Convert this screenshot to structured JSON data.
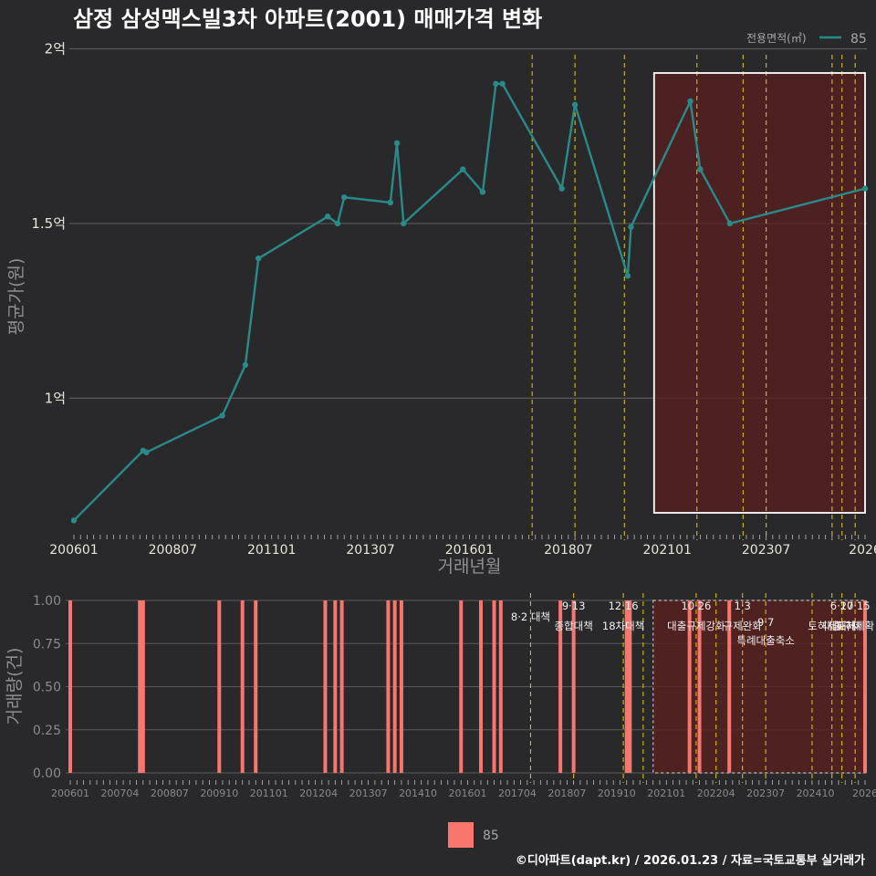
{
  "title": "삼정 삼성맥스빌3차 아파트(2001) 매매가격 변화",
  "footer": "©디아파트(dapt.kr) / 2026.01.23 / 자료=국토교통부 실거래가",
  "colors": {
    "line": "#2a8a8a",
    "bar": "#f8766d",
    "policy": "#d4c000",
    "box": "#ffffff",
    "highlight": "#5a1f1f"
  },
  "chart_data": [
    {
      "type": "line",
      "title": "삼정 삼성맥스빌3차 아파트(2001) 매매가격 변화",
      "xlabel": "거래년월",
      "ylabel": "평균가(원)",
      "legend_title": "전용면적(㎡)",
      "legend_position": "top-right",
      "series": [
        {
          "name": "85",
          "points": [
            [
              "2006-01",
              6500
            ],
            [
              "2007-10",
              8500
            ],
            [
              "2007-11",
              8450
            ],
            [
              "2009-10",
              9500
            ],
            [
              "2010-05",
              10950
            ],
            [
              "2010-09",
              14000
            ],
            [
              "2012-06",
              15200
            ],
            [
              "2012-09",
              15000
            ],
            [
              "2012-11",
              15750
            ],
            [
              "2014-01",
              15600
            ],
            [
              "2014-03",
              17300
            ],
            [
              "2014-05",
              15000
            ],
            [
              "2015-11",
              16550
            ],
            [
              "2016-05",
              15900
            ],
            [
              "2016-09",
              19000
            ],
            [
              "2016-11",
              19000
            ],
            [
              "2018-05",
              16000
            ],
            [
              "2018-09",
              18400
            ],
            [
              "2020-01",
              13500
            ],
            [
              "2020-02",
              14900
            ],
            [
              "2021-08",
              18500
            ],
            [
              "2021-11",
              16550
            ],
            [
              "2022-08",
              15000
            ],
            [
              "2026-01",
              16000
            ]
          ]
        }
      ],
      "y_ticks": [
        {
          "value": 10000,
          "label": "1억"
        },
        {
          "value": 15000,
          "label": "1.5억"
        },
        {
          "value": 20000,
          "label": "2억"
        }
      ],
      "ylim": [
        6300,
        20300
      ],
      "x_ticks": [
        "200601",
        "200807",
        "201101",
        "201307",
        "201601",
        "201807",
        "202101",
        "202307",
        "2026"
      ],
      "xlim": [
        "2006-01",
        "2026-01"
      ],
      "policy_lines": [
        "2017-08",
        "2018-09",
        "2019-12",
        "2021-10",
        "2022-12",
        "2023-07",
        "2025-03",
        "2025-06",
        "2025-10"
      ],
      "highlight_range": [
        "2020-09",
        "2026-01"
      ]
    },
    {
      "type": "bar",
      "xlabel": "",
      "ylabel": "거래량(건)",
      "legend_position": "bottom",
      "series_name": "85",
      "months": [
        "2006-01",
        "2007-10",
        "2007-11",
        "2009-10",
        "2010-05",
        "2010-09",
        "2012-06",
        "2012-09",
        "2012-11",
        "2014-01",
        "2014-03",
        "2014-05",
        "2015-11",
        "2016-05",
        "2016-09",
        "2016-11",
        "2018-05",
        "2018-09",
        "2020-01",
        "2020-02",
        "2021-08",
        "2021-11",
        "2022-08",
        "2026-01"
      ],
      "values": [
        1,
        1,
        1,
        1,
        1,
        1,
        1,
        1,
        1,
        1,
        1,
        1,
        1,
        1,
        1,
        1,
        1,
        1,
        1,
        1,
        1,
        1,
        1,
        1
      ],
      "y_ticks": [
        "0.00",
        "0.25",
        "0.50",
        "0.75",
        "1.00"
      ],
      "ylim": [
        0,
        1
      ],
      "x_ticks": [
        "200601",
        "200704",
        "200807",
        "200910",
        "201101",
        "201204",
        "201307",
        "201410",
        "201601",
        "201704",
        "201807",
        "201910",
        "202101",
        "202204",
        "202307",
        "202410",
        "2026"
      ],
      "policy_lines": [
        "2017-08",
        "2018-09",
        "2019-12",
        "2020-06",
        "2021-10",
        "2022-04",
        "2022-12",
        "2023-07",
        "2024-09",
        "2025-03",
        "2025-06",
        "2025-10"
      ],
      "annotations": [
        {
          "month": "2017-08",
          "date": "",
          "text": "8·2 대책"
        },
        {
          "month": "2018-09",
          "date": "9·13",
          "text": "종합대책"
        },
        {
          "month": "2019-12",
          "date": "12·16",
          "text": "18차대책"
        },
        {
          "month": "2021-10",
          "date": "10·26",
          "text": "대출규제강화"
        },
        {
          "month": "2022-12",
          "date": "1·3",
          "text": "규제완화"
        },
        {
          "month": "2023-07",
          "date": "9·7",
          "text": "특례대출축소"
        },
        {
          "month": "2025-03",
          "date": "",
          "text": "토허제해제"
        },
        {
          "month": "2025-06",
          "date": "6·27",
          "text": "대출규제"
        },
        {
          "month": "2025-10",
          "date": "10·15",
          "text": "토허제확"
        }
      ],
      "highlight_range": [
        "2020-09",
        "2026-01"
      ]
    }
  ]
}
